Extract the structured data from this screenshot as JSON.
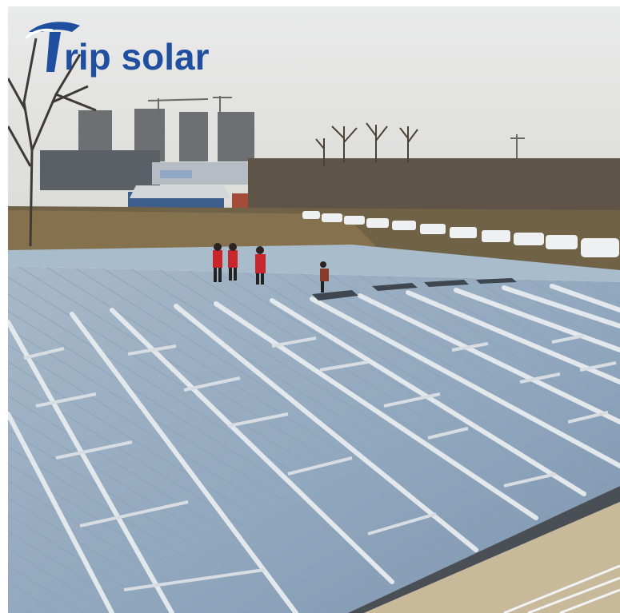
{
  "logo": {
    "text": "rip solar",
    "mark": "T",
    "color": "#1f4f9e"
  },
  "scene": {
    "sky_color": "#e4e5e3",
    "roof_color": "#9eb2c6",
    "rail_color": "#dfe4e8",
    "ground_color": "#6f6247",
    "worker_color": "#c8262c",
    "icons": [
      "tree-icon",
      "crane-icon",
      "car-icon",
      "worker-icon"
    ]
  }
}
